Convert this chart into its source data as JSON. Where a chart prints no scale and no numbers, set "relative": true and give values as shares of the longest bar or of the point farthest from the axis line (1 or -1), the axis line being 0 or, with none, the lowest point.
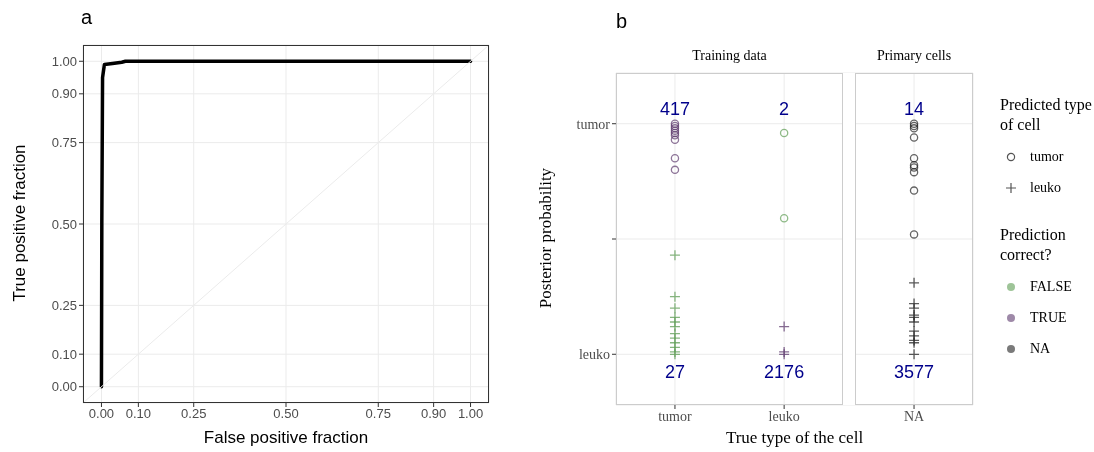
{
  "chart_data": [
    {
      "type": "line",
      "title": "a",
      "xlabel": "False positive fraction",
      "ylabel": "True positive fraction",
      "xlim": [
        -0.05,
        1.05
      ],
      "ylim": [
        -0.05,
        1.05
      ],
      "xticks": [
        {
          "value": 0,
          "label": "0.00"
        },
        {
          "value": 0.1,
          "label": "0.10"
        },
        {
          "value": 0.25,
          "label": "0.25"
        },
        {
          "value": 0.5,
          "label": "0.50"
        },
        {
          "value": 0.75,
          "label": "0.75"
        },
        {
          "value": 0.9,
          "label": "0.90"
        },
        {
          "value": 1,
          "label": "1.00"
        }
      ],
      "yticks": [
        {
          "value": 0,
          "label": "0.00"
        },
        {
          "value": 0.1,
          "label": "0.10"
        },
        {
          "value": 0.25,
          "label": "0.25"
        },
        {
          "value": 0.5,
          "label": "0.50"
        },
        {
          "value": 0.75,
          "label": "0.75"
        },
        {
          "value": 0.9,
          "label": "0.90"
        },
        {
          "value": 1,
          "label": "1.00"
        }
      ],
      "grid": true,
      "marker": "none",
      "line_style": "solid",
      "series": [
        {
          "color": "#000000",
          "x": [
            0,
            0.001,
            0.003,
            0.008,
            0.03,
            0.055,
            0.065,
            1
          ],
          "values": [
            0,
            0.5,
            0.95,
            0.99,
            0.993,
            0.997,
            1,
            1
          ]
        },
        {
          "color": "#ebebeb",
          "x": [
            -0.05,
            1.05
          ],
          "values": [
            -0.05,
            1.05
          ]
        }
      ]
    },
    {
      "type": "scatter",
      "title": "b",
      "xlabel": "True type of the cell",
      "ylabel": "Posterior probability",
      "relative": true,
      "categories": [
        "tumor",
        "leuko",
        "NA"
      ],
      "grid": true,
      "legend": "right",
      "legend_title": "Prediction correct?",
      "annotations": [
        "tumor",
        "leuko",
        "417",
        "2",
        "14",
        "27",
        "2176",
        "3577",
        "Training data",
        "Primary cells",
        "Predicted type of cell",
        "tumor",
        "leuko"
      ],
      "series": [
        {
          "name": "FALSE",
          "color": "#5e9c54",
          "x": [
            "leuko",
            "leuko",
            "tumor",
            "tumor",
            "tumor",
            "tumor",
            "tumor",
            "tumor",
            "tumor",
            "tumor",
            "tumor",
            "tumor",
            "tumor",
            "tumor"
          ],
          "values": [
            0.96,
            0.59,
            0.43,
            0.25,
            0.2,
            0.16,
            0.14,
            0.12,
            0.09,
            0.07,
            0.05,
            0.03,
            0.01,
            0
          ]
        },
        {
          "name": "TRUE",
          "color": "#5e3a6e",
          "x": [
            "tumor",
            "tumor",
            "tumor",
            "tumor",
            "tumor",
            "tumor",
            "tumor",
            "tumor",
            "tumor",
            "leuko",
            "leuko",
            "leuko"
          ],
          "values": [
            1,
            0.99,
            0.98,
            0.97,
            0.96,
            0.95,
            0.93,
            0.85,
            0.8,
            0.12,
            0.01,
            0
          ]
        },
        {
          "name": "NA",
          "color": "#222222",
          "x": [
            "NA",
            "NA",
            "NA",
            "NA",
            "NA",
            "NA",
            "NA",
            "NA",
            "NA",
            "NA",
            "NA",
            "NA",
            "NA",
            "NA",
            "NA",
            "NA",
            "NA",
            "NA",
            "NA",
            "NA",
            "NA"
          ],
          "values": [
            1,
            0.99,
            0.98,
            0.94,
            0.85,
            0.82,
            0.81,
            0.79,
            0.71,
            0.52,
            0.31,
            0.22,
            0.2,
            0.17,
            0.16,
            0.14,
            0.1,
            0.08,
            0.06,
            0.05,
            0
          ]
        }
      ]
    }
  ]
}
